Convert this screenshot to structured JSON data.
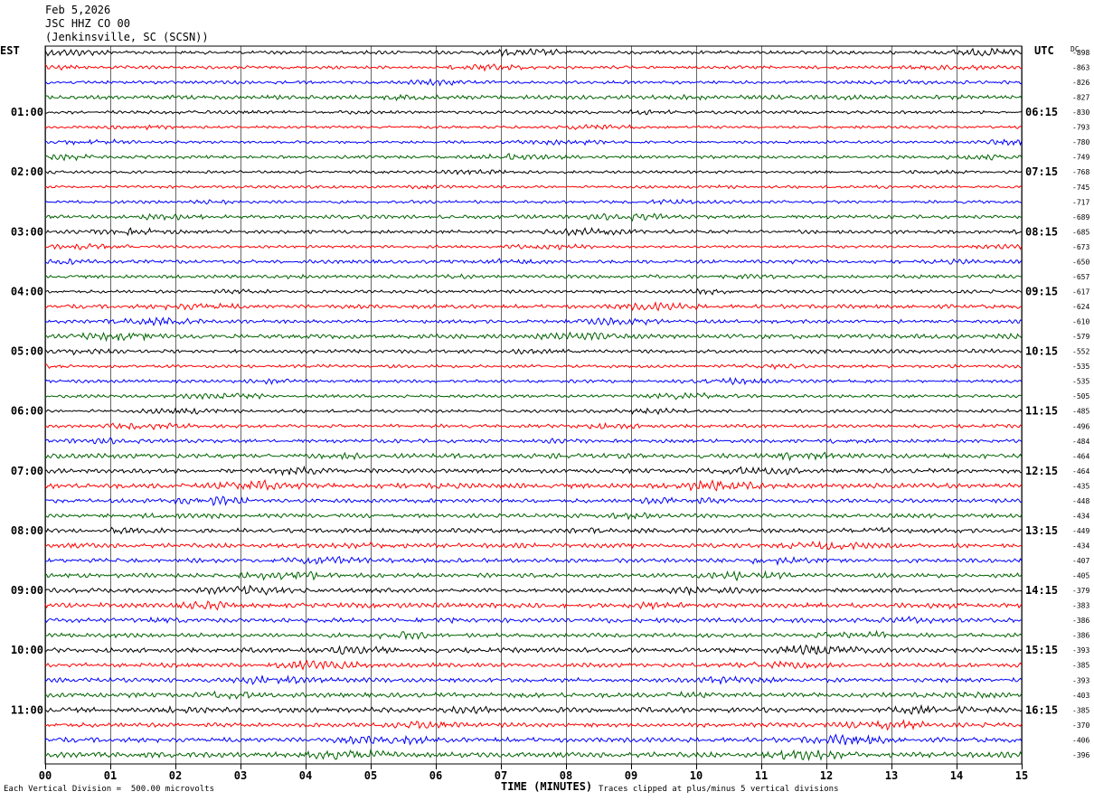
{
  "header": {
    "date": "Feb 5,2026",
    "station": "JSC HHZ CO 00",
    "location": "(Jenkinsville, SC (SCSN))"
  },
  "labels": {
    "left_tz": "EST",
    "right_tz": "UTC",
    "dc_label": "DC",
    "xlabel": "TIME (MINUTES)",
    "scale_note": "Each Vertical Division =  500.00 microvolts",
    "clip_note": "Traces clipped at plus/minus 5 vertical divisions"
  },
  "colors": {
    "trace_cycle": [
      "#000000",
      "#ff0000",
      "#0000ff",
      "#006400"
    ],
    "grid": "#000000"
  },
  "chart_data": {
    "type": "line",
    "title": "JSC HHZ CO 00",
    "xlabel": "TIME (MINUTES)",
    "xlim": [
      0,
      15
    ],
    "x_ticks": [
      "00",
      "01",
      "02",
      "03",
      "04",
      "05",
      "06",
      "07",
      "08",
      "09",
      "10",
      "11",
      "12",
      "13",
      "14",
      "15"
    ],
    "left_hour_labels": [
      "01:00",
      "02:00",
      "03:00",
      "04:00",
      "05:00",
      "06:00",
      "07:00",
      "08:00",
      "09:00",
      "10:00",
      "11:00"
    ],
    "right_hour_labels": [
      "06:15",
      "07:15",
      "08:15",
      "09:15",
      "10:15",
      "11:15",
      "12:15",
      "13:15",
      "14:15",
      "15:15",
      "16:15"
    ],
    "trace_count": 48,
    "dc_offsets": [
      -898,
      -863,
      -826,
      -827,
      -830,
      -793,
      -780,
      -749,
      -768,
      -745,
      -717,
      -689,
      -685,
      -673,
      -650,
      -657,
      -617,
      -624,
      -610,
      -579,
      -552,
      -535,
      -535,
      -505,
      -485,
      -496,
      -484,
      -464,
      -464,
      -435,
      -448,
      -434,
      -449,
      -434,
      -407,
      -405,
      -379,
      -383,
      -386,
      -386,
      -393,
      -385,
      -393,
      -403,
      -385,
      -370,
      -406,
      -396
    ],
    "amplitudes": [
      0.45,
      0.4,
      0.4,
      0.5,
      0.4,
      0.35,
      0.35,
      0.4,
      0.35,
      0.35,
      0.4,
      0.45,
      0.45,
      0.35,
      0.45,
      0.45,
      0.4,
      0.5,
      0.45,
      0.55,
      0.45,
      0.4,
      0.4,
      0.4,
      0.4,
      0.45,
      0.45,
      0.6,
      0.55,
      0.65,
      0.5,
      0.5,
      0.55,
      0.55,
      0.55,
      0.55,
      0.55,
      0.6,
      0.55,
      0.55,
      0.6,
      0.55,
      0.55,
      0.6,
      0.65,
      0.55,
      0.6,
      0.65
    ]
  }
}
